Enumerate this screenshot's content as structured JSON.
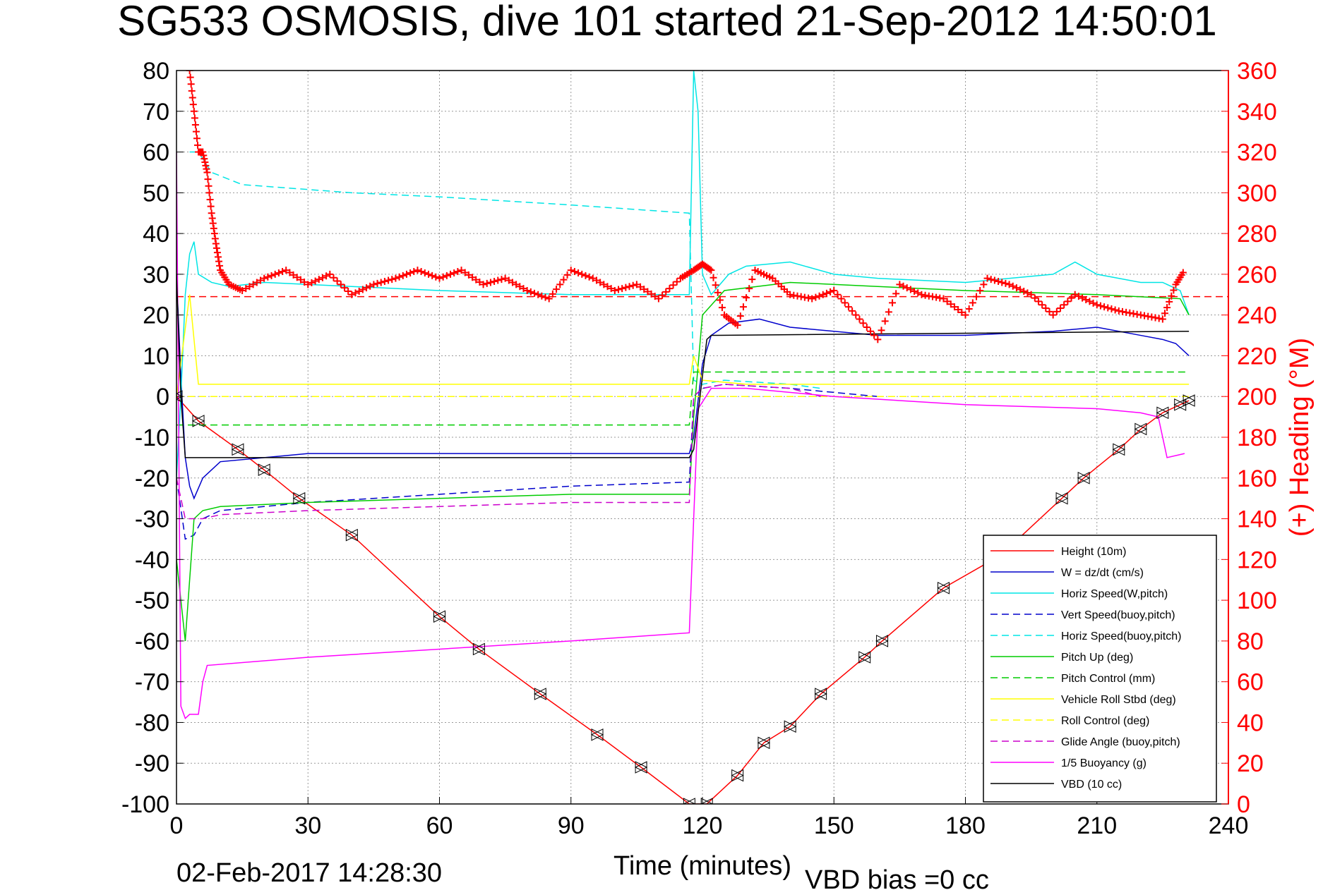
{
  "chart_data": {
    "type": "line",
    "title": "SG533 OSMOSIS, dive 101 started 21-Sep-2012 14:50:01",
    "xlabel": "Time (minutes)",
    "ylabel_right": "(+) Heading (°M)",
    "footer_date": "02-Feb-2017 14:28:30",
    "footer_vbd": "VBD bias =0 cc",
    "xlim": [
      0,
      240
    ],
    "ylim": [
      -100,
      80
    ],
    "ylim_right": [
      0,
      360
    ],
    "x_ticks": [
      "0",
      "30",
      "60",
      "90",
      "120",
      "150",
      "180",
      "210",
      "240"
    ],
    "y_ticks": [
      "80",
      "70",
      "60",
      "50",
      "40",
      "30",
      "20",
      "10",
      "0",
      "-10",
      "-20",
      "-30",
      "-40",
      "-50",
      "-60",
      "-70",
      "-80",
      "-90",
      "-100"
    ],
    "y_ticks_right": [
      "360",
      "340",
      "320",
      "300",
      "280",
      "260",
      "240",
      "220",
      "200",
      "180",
      "160",
      "140",
      "120",
      "100",
      "80",
      "60",
      "40",
      "20",
      "0"
    ],
    "grid": true,
    "legend_position": "bottom-right",
    "series": [
      {
        "name": "Height (10m)",
        "color": "#ff0000",
        "dash": "solid",
        "x": [
          0,
          5,
          14,
          20,
          28,
          40,
          60,
          69,
          83,
          96,
          106,
          117,
          121,
          128,
          134,
          140,
          147,
          157,
          161,
          175,
          188,
          202,
          207,
          215,
          220,
          225,
          229,
          231
        ],
        "y": [
          0,
          -6,
          -13,
          -18,
          -25,
          -34,
          -54,
          -62,
          -73,
          -83,
          -91,
          -100,
          -100,
          -93,
          -85,
          -81,
          -73,
          -64,
          -60,
          -47,
          -39,
          -25,
          -20,
          -13,
          -8,
          -4,
          -2,
          -1
        ]
      },
      {
        "name": "W = dz/dt (cm/s)",
        "color": "#0000cc",
        "dash": "solid",
        "x": [
          0,
          1,
          2,
          3,
          4,
          6,
          10,
          20,
          30,
          60,
          90,
          117,
          118,
          120,
          122,
          126,
          133,
          140,
          160,
          180,
          200,
          210,
          220,
          225,
          228,
          231
        ],
        "y": [
          30,
          5,
          -15,
          -22,
          -25,
          -20,
          -16,
          -15,
          -14,
          -14,
          -14,
          -14,
          -10,
          8,
          15,
          18,
          19,
          17,
          15,
          15,
          16,
          17,
          15,
          14,
          13,
          10
        ]
      },
      {
        "name": "Horiz Speed(W,pitch)",
        "color": "#00e5e5",
        "dash": "solid",
        "x": [
          0,
          1,
          2,
          3,
          4,
          5,
          8,
          12,
          20,
          40,
          60,
          90,
          117,
          118,
          119,
          120,
          122,
          126,
          130,
          140,
          150,
          160,
          180,
          200,
          205,
          210,
          220,
          225,
          229,
          231
        ],
        "y": [
          -20,
          0,
          25,
          35,
          38,
          30,
          28,
          27,
          28,
          27,
          26,
          25,
          25,
          80,
          70,
          30,
          25,
          30,
          32,
          33,
          30,
          29,
          28,
          30,
          33,
          30,
          28,
          28,
          26,
          20
        ]
      },
      {
        "name": "Vert Speed(buoy,pitch)",
        "color": "#0000cc",
        "dash": "dashed",
        "x": [
          0,
          2,
          4,
          6,
          10,
          30,
          60,
          90,
          117,
          118,
          120,
          125,
          140,
          160
        ],
        "y": [
          -20,
          -35,
          -34,
          -30,
          -28,
          -26,
          -24,
          -22,
          -21,
          0,
          2,
          3,
          2,
          0
        ]
      },
      {
        "name": "Horiz Speed(buoy,pitch)",
        "color": "#00e5e5",
        "dash": "dashed",
        "x": [
          3,
          5,
          8,
          15,
          40,
          60,
          90,
          117,
          118,
          120,
          125,
          140,
          147
        ],
        "y": [
          60,
          60,
          55,
          52,
          50,
          49,
          47,
          45,
          4,
          3,
          4,
          3,
          2
        ]
      },
      {
        "name": "Pitch Up (deg)",
        "color": "#00cc00",
        "dash": "solid",
        "x": [
          0,
          2,
          4,
          6,
          10,
          30,
          60,
          90,
          117,
          118,
          120,
          125,
          140,
          160,
          180,
          210,
          229,
          231
        ],
        "y": [
          -40,
          -60,
          -30,
          -28,
          -27,
          -26,
          -25,
          -24,
          -24,
          -5,
          20,
          26,
          28,
          27,
          26,
          25,
          24,
          20
        ]
      },
      {
        "name": "Pitch Control (mm)",
        "color": "#00cc00",
        "dash": "dashed",
        "x": [
          0,
          6,
          117,
          118,
          128,
          231
        ],
        "y": [
          -7,
          -7,
          -7,
          6,
          6,
          6
        ]
      },
      {
        "name": "Vehicle Roll Stbd (deg)",
        "color": "#ffff00",
        "dash": "solid",
        "x": [
          0,
          3,
          5,
          10,
          30,
          60,
          90,
          117,
          118,
          120,
          130,
          147,
          160,
          180,
          210,
          231
        ],
        "y": [
          0,
          25,
          3,
          3,
          3,
          3,
          3,
          3,
          10,
          4,
          3,
          3,
          3,
          3,
          3,
          3
        ]
      },
      {
        "name": "Roll Control (deg)",
        "color": "#ffff00",
        "dash": "dashed",
        "x": [
          0,
          231
        ],
        "y": [
          0,
          0
        ]
      },
      {
        "name": "Glide Angle (buoy,pitch)",
        "color": "#cc00cc",
        "dash": "dashed",
        "x": [
          0,
          2,
          4,
          6,
          10,
          30,
          60,
          90,
          117,
          118,
          120,
          125,
          140,
          147
        ],
        "y": [
          -20,
          -30,
          -30,
          -30,
          -29,
          -28,
          -27,
          -26,
          -26,
          0,
          2,
          3,
          2,
          0
        ]
      },
      {
        "name": "1/5 Buoyancy (g)",
        "color": "#ff00ff",
        "dash": "solid",
        "x": [
          0,
          1,
          2,
          3,
          5,
          6,
          7,
          30,
          60,
          90,
          117,
          118,
          119,
          122,
          130,
          150,
          180,
          210,
          220,
          224,
          226,
          230
        ],
        "y": [
          60,
          -76,
          -79,
          -78,
          -78,
          -70,
          -66,
          -64,
          -62,
          -60,
          -58,
          -30,
          -3,
          2,
          2,
          0,
          -2,
          -3,
          -4,
          -5,
          -15,
          -14
        ]
      },
      {
        "name": "VBD (10 cc)",
        "color": "#000000",
        "dash": "solid",
        "x": [
          0,
          1,
          2,
          117,
          118,
          121,
          122,
          231
        ],
        "y": [
          30,
          0,
          -15,
          -15,
          -13,
          14,
          15,
          16
        ]
      }
    ],
    "heading_series": {
      "name": "(+) Heading (°M)",
      "color": "#ff0000",
      "marker": "+",
      "x": [
        3,
        4,
        5,
        6,
        7,
        8,
        9,
        10,
        12,
        15,
        20,
        25,
        30,
        35,
        40,
        45,
        50,
        55,
        60,
        65,
        70,
        75,
        80,
        85,
        90,
        95,
        100,
        105,
        110,
        115,
        118,
        120,
        122,
        125,
        128,
        132,
        136,
        140,
        145,
        150,
        155,
        160,
        165,
        170,
        175,
        180,
        185,
        190,
        195,
        200,
        205,
        210,
        215,
        220,
        225,
        228,
        230
      ],
      "y": [
        360,
        340,
        320,
        320,
        310,
        290,
        275,
        262,
        255,
        252,
        258,
        262,
        255,
        260,
        250,
        255,
        258,
        262,
        258,
        262,
        255,
        258,
        252,
        248,
        262,
        258,
        252,
        255,
        248,
        258,
        262,
        265,
        262,
        240,
        235,
        262,
        258,
        250,
        248,
        252,
        240,
        228,
        255,
        250,
        248,
        240,
        258,
        255,
        250,
        240,
        250,
        245,
        242,
        240,
        238,
        255,
        262
      ]
    },
    "heading_constant": {
      "color": "#ff0000",
      "value": 249
    }
  }
}
